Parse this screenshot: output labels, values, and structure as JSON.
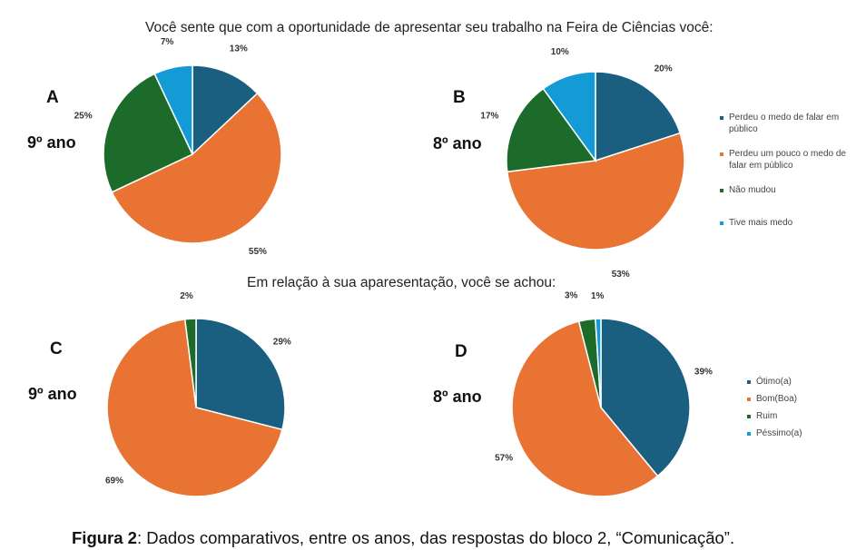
{
  "question1": "Você  sente que com  a oportunidade de apresentar  seu trabalho na Feira de Ciências você:",
  "question2": "Em relação à sua aparesentação, você se achou:",
  "caption": {
    "label": "Figura 2",
    "text": ": Dados comparativos, entre os anos, das respostas do  bloco 2, “Comunicação”."
  },
  "colors": [
    "#1a5e80",
    "#e87332",
    "#1d6b2a",
    "#149bd6"
  ],
  "legend1": [
    "Perdeu o medo de falar em público",
    "Perdeu um pouco o medo de falar em público",
    "Não mudou",
    "Tive mais medo"
  ],
  "legend2": [
    "Ótimo(a)",
    "Bom(Boa)",
    "Ruim",
    "Péssimo(a)"
  ],
  "chart_data": [
    {
      "type": "pie",
      "panel": "A",
      "grade": "9º ano",
      "categories": [
        "Perdeu o medo de falar em público",
        "Perdeu um pouco o medo de falar em público",
        "Não mudou",
        "Tive mais medo"
      ],
      "values": [
        13,
        55,
        25,
        7
      ],
      "labels": [
        "13%",
        "55%",
        "25%",
        "7%"
      ]
    },
    {
      "type": "pie",
      "panel": "B",
      "grade": "8º ano",
      "categories": [
        "Perdeu o medo de falar em público",
        "Perdeu um pouco o medo de falar em público",
        "Não mudou",
        "Tive mais medo"
      ],
      "values": [
        20,
        53,
        17,
        10
      ],
      "labels": [
        "20%",
        "53%",
        "17%",
        "10%"
      ],
      "legend_position": "right"
    },
    {
      "type": "pie",
      "panel": "C",
      "grade": "9º ano",
      "categories": [
        "Ótimo(a)",
        "Bom(Boa)",
        "Ruim",
        "Péssimo(a)"
      ],
      "values": [
        29,
        69,
        2,
        0
      ],
      "labels": [
        "29%",
        "69%",
        "2%",
        ""
      ]
    },
    {
      "type": "pie",
      "panel": "D",
      "grade": "8º ano",
      "categories": [
        "Ótimo(a)",
        "Bom(Boa)",
        "Ruim",
        "Péssimo(a)"
      ],
      "values": [
        39,
        57,
        3,
        1
      ],
      "labels": [
        "39%",
        "57%",
        "3%",
        "1%"
      ],
      "legend_position": "right"
    }
  ]
}
